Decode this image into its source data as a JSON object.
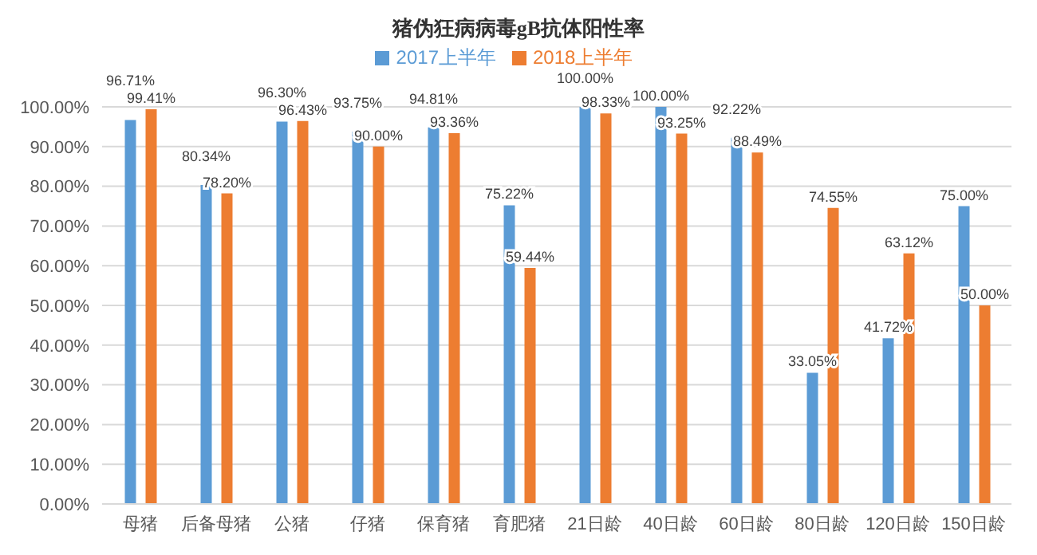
{
  "chart_data": {
    "type": "bar",
    "title": "猪伪狂病病毒gB抗体阳性率",
    "categories": [
      "母猪",
      "后备母猪",
      "公猪",
      "仔猪",
      "保育猪",
      "育肥猪",
      "21日龄",
      "40日龄",
      "60日龄",
      "80日龄",
      "120日龄",
      "150日龄"
    ],
    "series": [
      {
        "name": "2017上半年",
        "color": "#5b9bd5",
        "values": [
          96.71,
          80.34,
          96.3,
          93.75,
          94.81,
          75.22,
          100.0,
          100.0,
          92.22,
          33.05,
          41.72,
          75.0
        ],
        "value_labels": [
          "96.71%",
          "80.34%",
          "96.30%",
          "93.75%",
          "94.81%",
          "75.22%",
          "100.00%",
          "100.00%",
          "92.22%",
          "33.05%",
          "41.72%",
          "75.00%"
        ]
      },
      {
        "name": "2018上半年",
        "color": "#ed7d31",
        "values": [
          99.41,
          78.2,
          96.43,
          90.0,
          93.36,
          59.44,
          98.33,
          93.25,
          88.49,
          74.55,
          63.12,
          50.0
        ],
        "value_labels": [
          "99.41%",
          "78.20%",
          "96.43%",
          "90.00%",
          "93.36%",
          "59.44%",
          "98.33%",
          "93.25%",
          "88.49%",
          "74.55%",
          "63.12%",
          "50.00%"
        ]
      }
    ],
    "ylim": [
      0,
      100
    ],
    "yticks": [
      {
        "value": 0,
        "label": "0.00%"
      },
      {
        "value": 10,
        "label": "10.00%"
      },
      {
        "value": 20,
        "label": "20.00%"
      },
      {
        "value": 30,
        "label": "30.00%"
      },
      {
        "value": 40,
        "label": "40.00%"
      },
      {
        "value": 50,
        "label": "50.00%"
      },
      {
        "value": 60,
        "label": "60.00%"
      },
      {
        "value": 70,
        "label": "70.00%"
      },
      {
        "value": 80,
        "label": "80.00%"
      },
      {
        "value": 90,
        "label": "90.00%"
      },
      {
        "value": 100,
        "label": "100.00%"
      }
    ],
    "grid": "y",
    "legend": "top"
  }
}
